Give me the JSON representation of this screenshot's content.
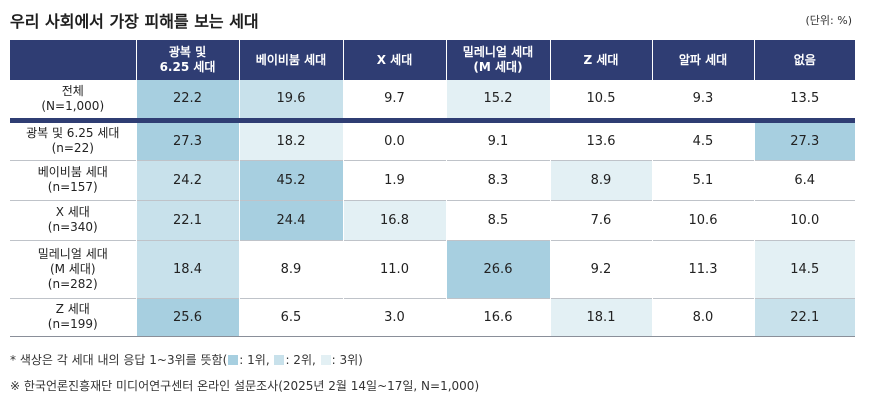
{
  "title": "우리 사회에서 가장 피해를 보는 세대",
  "unit": "(단위: %)",
  "columns": [
    {
      "line1": "광복 및",
      "line2": "6.25 세대"
    },
    {
      "line1": "베이비붐 세대",
      "line2": ""
    },
    {
      "line1": "X 세대",
      "line2": ""
    },
    {
      "line1": "밀레니얼 세대",
      "line2": "(M 세대)"
    },
    {
      "line1": "Z 세대",
      "line2": ""
    },
    {
      "line1": "알파 세대",
      "line2": ""
    },
    {
      "line1": "없음",
      "line2": ""
    }
  ],
  "rows": [
    {
      "label": [
        "전체",
        "(N=1,000)"
      ],
      "values": [
        "22.2",
        "19.6",
        "9.7",
        "15.2",
        "10.5",
        "9.3",
        "13.5"
      ],
      "ranks": [
        1,
        2,
        0,
        3,
        0,
        0,
        0
      ]
    },
    {
      "label": [
        "광복 및 6.25 세대",
        "(n=22)"
      ],
      "values": [
        "27.3",
        "18.2",
        "0.0",
        "9.1",
        "13.6",
        "4.5",
        "27.3"
      ],
      "ranks": [
        1,
        3,
        0,
        0,
        0,
        0,
        1
      ]
    },
    {
      "label": [
        "베이비붐 세대",
        "(n=157)"
      ],
      "values": [
        "24.2",
        "45.2",
        "1.9",
        "8.3",
        "8.9",
        "5.1",
        "6.4"
      ],
      "ranks": [
        2,
        1,
        0,
        0,
        3,
        0,
        0
      ]
    },
    {
      "label": [
        "X 세대",
        "(n=340)"
      ],
      "values": [
        "22.1",
        "24.4",
        "16.8",
        "8.5",
        "7.6",
        "10.6",
        "10.0"
      ],
      "ranks": [
        2,
        1,
        3,
        0,
        0,
        0,
        0
      ]
    },
    {
      "label": [
        "밀레니얼 세대",
        "(M 세대)",
        "(n=282)"
      ],
      "values": [
        "18.4",
        "8.9",
        "11.0",
        "26.6",
        "9.2",
        "11.3",
        "14.5"
      ],
      "ranks": [
        2,
        0,
        0,
        1,
        0,
        0,
        3
      ]
    },
    {
      "label": [
        "Z 세대",
        "(n=199)"
      ],
      "values": [
        "25.6",
        "6.5",
        "3.0",
        "16.6",
        "18.1",
        "8.0",
        "22.1"
      ],
      "ranks": [
        1,
        0,
        0,
        0,
        3,
        0,
        2
      ]
    }
  ],
  "note": {
    "prefix": "* 색상은 각 세대 내의 응답 1~3위를 뜻함(",
    "rank1": ": 1위, ",
    "rank2": ": 2위, ",
    "rank3": ": 3위)"
  },
  "source": "※ 한국언론진흥재단 미디어연구센터 온라인 설문조사(2025년 2월 14일~17일, N=1,000)",
  "colors": {
    "header": "#2f3d73",
    "rank1": "#a7cfe0",
    "rank2": "#c8e1eb",
    "rank3": "#e3f0f4"
  }
}
